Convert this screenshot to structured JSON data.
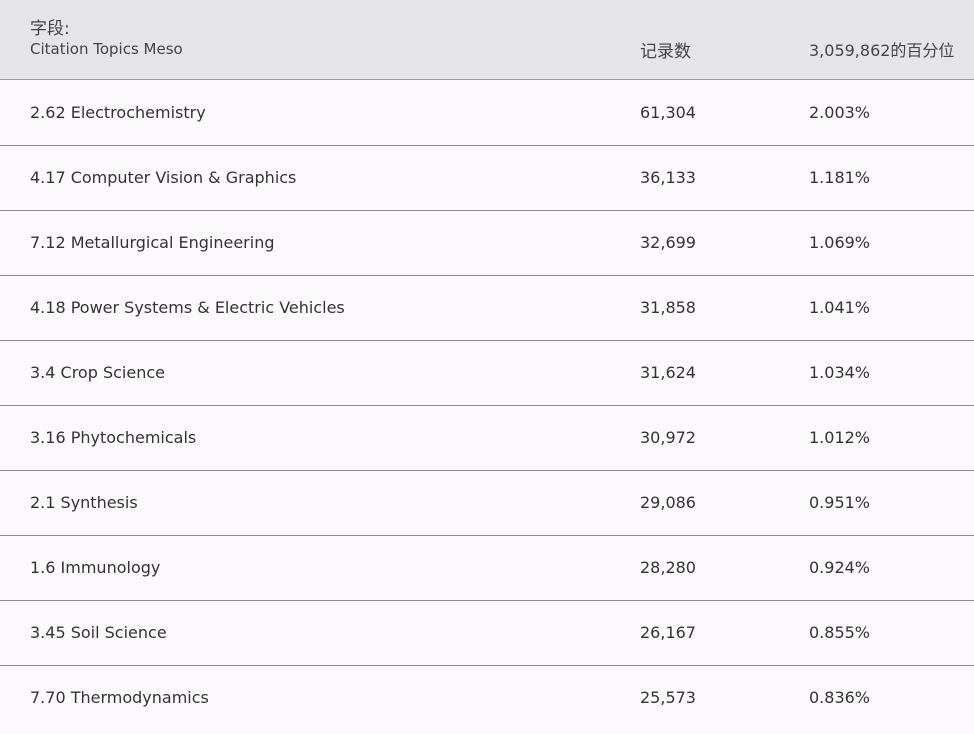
{
  "header": {
    "field_label": "字段:",
    "field_name": "Citation Topics Meso",
    "records_label": "记录数",
    "percent_label": "3,059,862的百分位"
  },
  "rows": [
    {
      "topic": "2.62 Electrochemistry",
      "records": "61,304",
      "percent": "2.003%"
    },
    {
      "topic": "4.17 Computer Vision & Graphics",
      "records": "36,133",
      "percent": "1.181%"
    },
    {
      "topic": "7.12 Metallurgical Engineering",
      "records": "32,699",
      "percent": "1.069%"
    },
    {
      "topic": "4.18 Power Systems & Electric Vehicles",
      "records": "31,858",
      "percent": "1.041%"
    },
    {
      "topic": "3.4 Crop Science",
      "records": "31,624",
      "percent": "1.034%"
    },
    {
      "topic": "3.16 Phytochemicals",
      "records": "30,972",
      "percent": "1.012%"
    },
    {
      "topic": "2.1 Synthesis",
      "records": "29,086",
      "percent": "0.951%"
    },
    {
      "topic": "1.6 Immunology",
      "records": "28,280",
      "percent": "0.924%"
    },
    {
      "topic": "3.45 Soil Science",
      "records": "26,167",
      "percent": "0.855%"
    },
    {
      "topic": "7.70 Thermodynamics",
      "records": "25,573",
      "percent": "0.836%"
    }
  ]
}
